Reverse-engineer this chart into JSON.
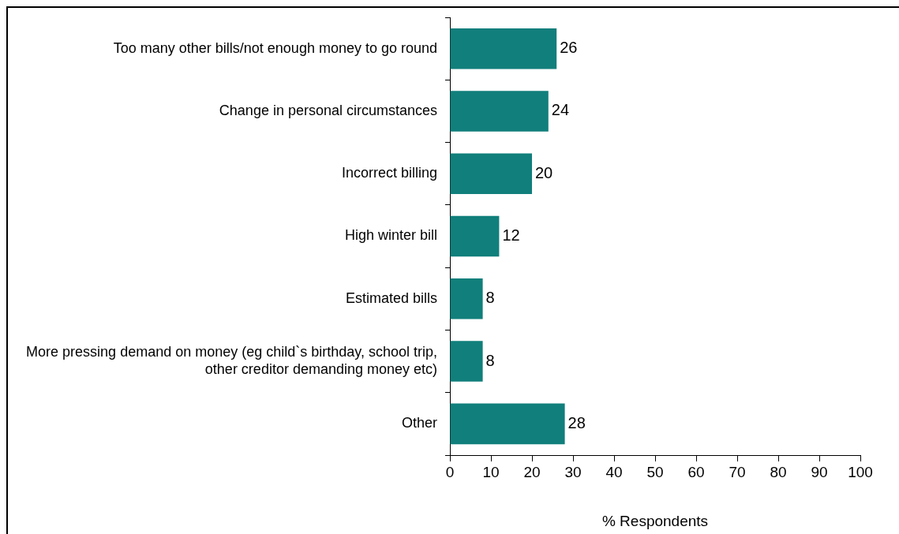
{
  "chart_data": {
    "type": "bar",
    "orientation": "horizontal",
    "categories": [
      "Too many other bills/not enough money to go round",
      "Change in personal circumstances",
      "Incorrect billing",
      "High winter bill",
      "Estimated bills",
      "More pressing demand on money (eg child`s birthday, school trip, other creditor demanding money etc)",
      "Other"
    ],
    "values": [
      26,
      24,
      20,
      12,
      8,
      8,
      28
    ],
    "color": "#117f7b",
    "xlabel": "% Respondents",
    "xlim": [
      0,
      100
    ],
    "xticks": [
      0,
      10,
      20,
      30,
      40,
      50,
      60,
      70,
      80,
      90,
      100
    ],
    "grid": false,
    "legend": false,
    "data_labels": true
  }
}
